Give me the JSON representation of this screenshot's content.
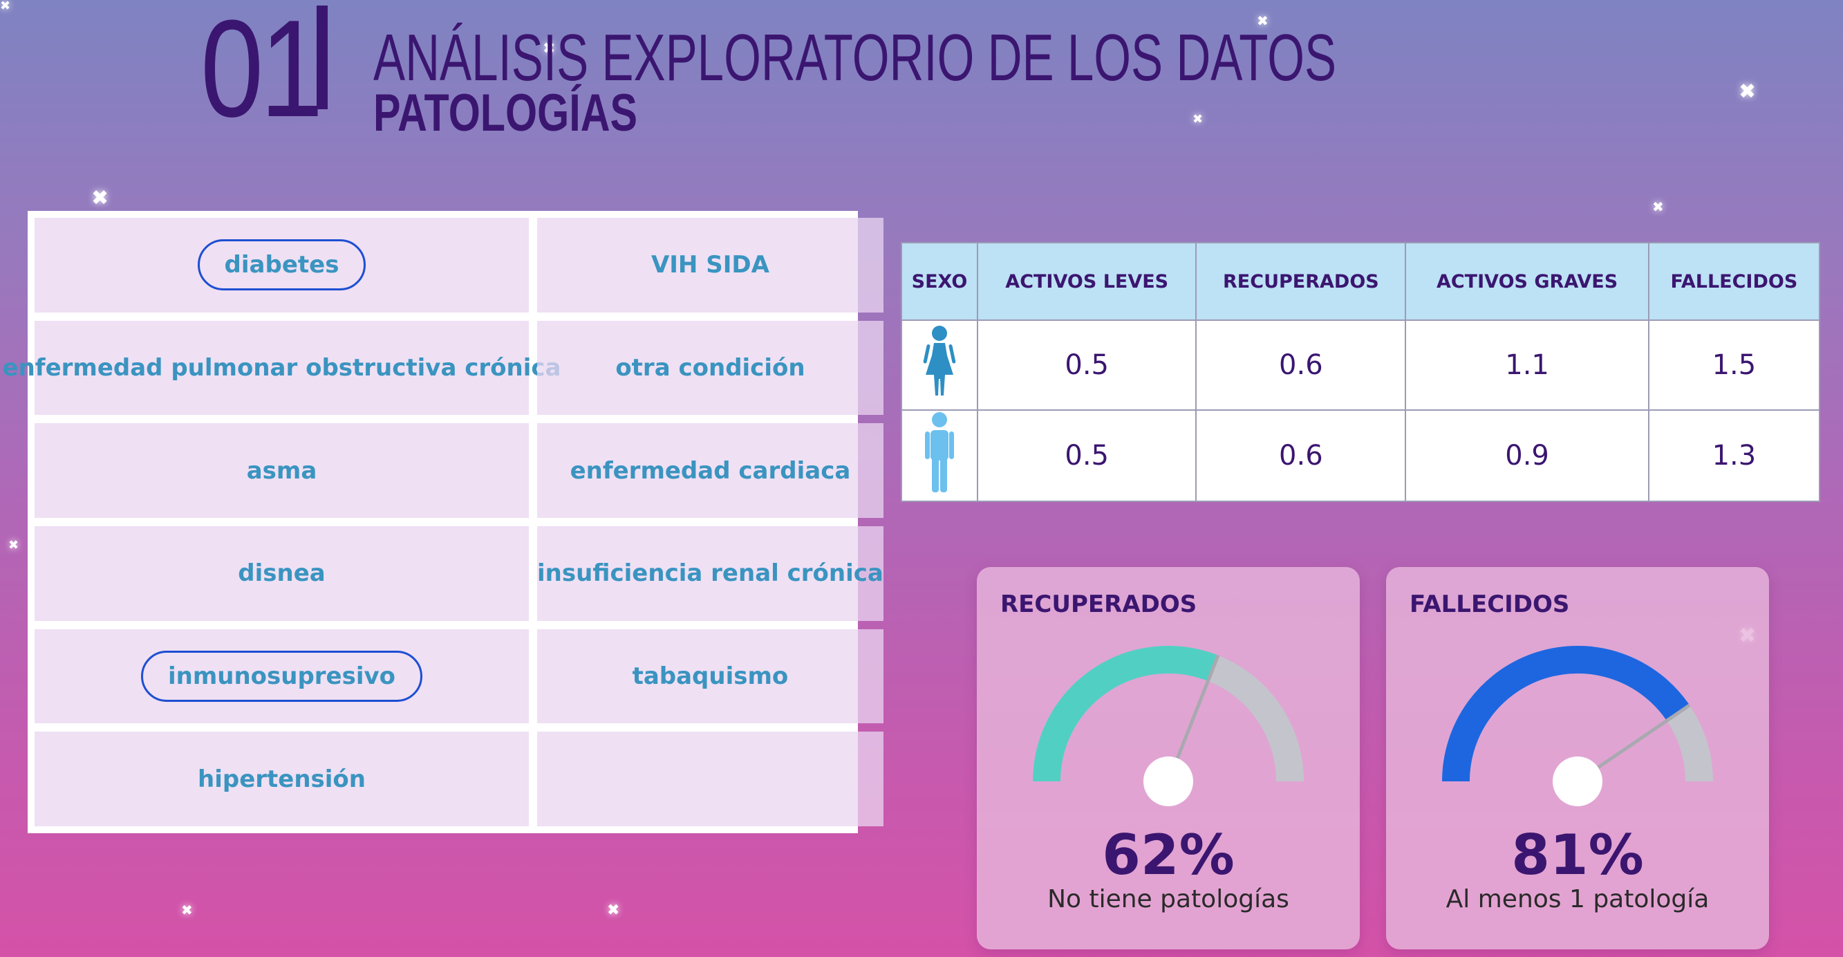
{
  "header": {
    "number": "01",
    "title": "ANÁLISIS EXPLORATORIO DE LOS DATOS",
    "subtitle": "PATOLOGÍAS"
  },
  "pathologies": {
    "left": [
      "diabetes",
      "enfermedad pulmonar obstructiva crónica",
      "asma",
      "disnea",
      "inmunosupresivo",
      "hipertensión"
    ],
    "right": [
      "VIH SIDA",
      "otra condición",
      "enfermedad cardiaca",
      "insuficiencia renal crónica",
      "tabaquismo",
      ""
    ],
    "highlighted": [
      "diabetes",
      "inmunosupresivo"
    ],
    "highlight_color": "#1d4fd1",
    "text_color": "#3a94c0"
  },
  "sex_table": {
    "headers": [
      "SEXO",
      "ACTIVOS LEVES",
      "RECUPERADOS",
      "ACTIVOS GRAVES",
      "FALLECIDOS"
    ],
    "rows": [
      {
        "sex_icon": "female-icon",
        "values": [
          "0.5",
          "0.6",
          "1.1",
          "1.5"
        ]
      },
      {
        "sex_icon": "male-icon",
        "values": [
          "0.5",
          "0.6",
          "0.9",
          "1.3"
        ]
      }
    ],
    "icon_color_female": "#2d8fc4",
    "icon_color_male": "#6cc0ee"
  },
  "gauges": [
    {
      "title": "RECUPERADOS",
      "value_text": "62%",
      "fraction": 0.62,
      "caption": "No tiene patologías",
      "fill_color": "#52cfc3",
      "track_color": "#c4c4cc"
    },
    {
      "title": "FALLECIDOS",
      "value_text": "81%",
      "fraction": 0.81,
      "caption": "Al menos 1 patología",
      "fill_color": "#1e66e0",
      "track_color": "#c4c4cc"
    }
  ],
  "colors": {
    "primary_text": "#3b1670",
    "table_header_bg": "#bde1f5"
  }
}
